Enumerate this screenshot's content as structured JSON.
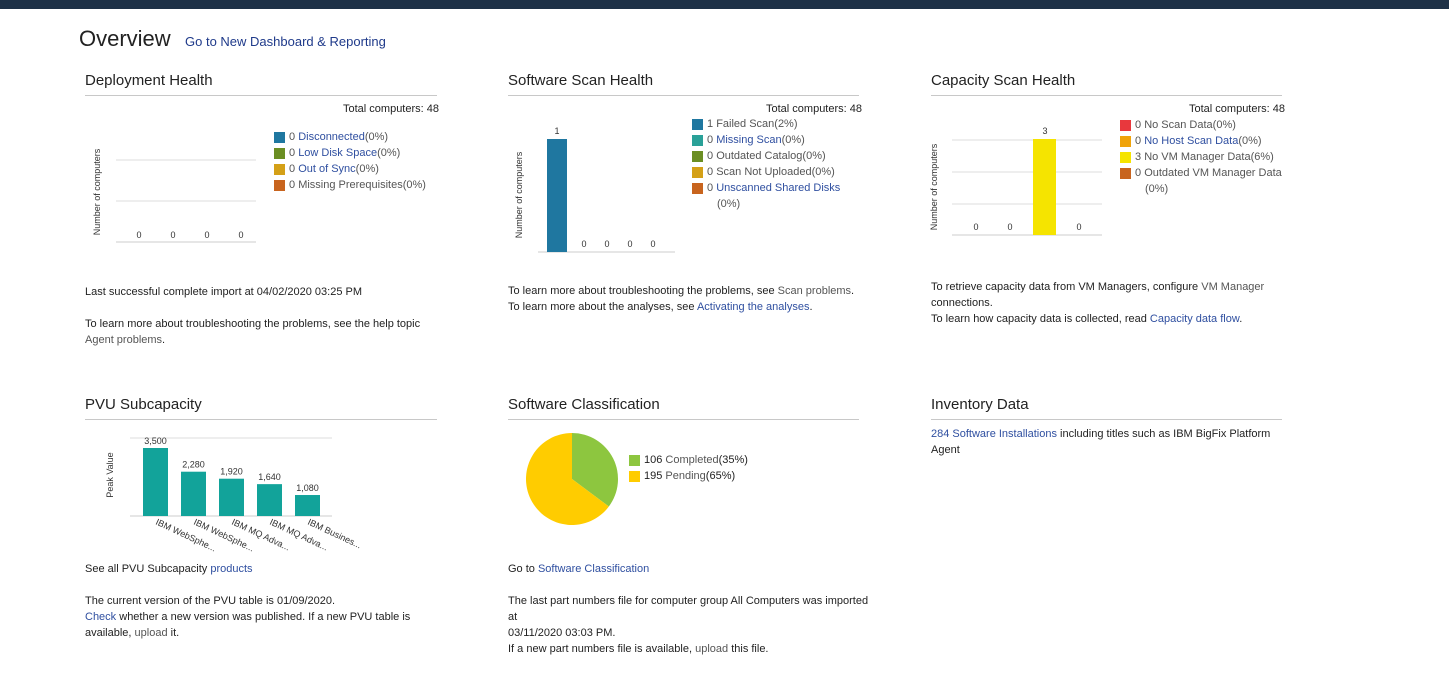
{
  "page": {
    "title": "Overview",
    "dashboard_link": "Go to New Dashboard & Reporting"
  },
  "deployment": {
    "title": "Deployment Health",
    "total": "Total computers: 48",
    "ylabel": "Number of computers",
    "legend": [
      {
        "count": "0",
        "label": "Disconnected",
        "pct": " (0%)",
        "color": "#1f77a0"
      },
      {
        "count": "0",
        "label": "Low Disk Space",
        "pct": " (0%)",
        "color": "#6b8e23"
      },
      {
        "count": "0",
        "label": "Out of Sync",
        "pct": " (0%)",
        "color": "#d4a017"
      },
      {
        "count": "0",
        "label": "Missing Prerequisites",
        "pct": " (0%)",
        "color": "#c8641e"
      }
    ],
    "bar_labels": [
      "0",
      "0",
      "0",
      "0"
    ],
    "import_text": "Last successful complete import at 04/02/2020 03:25 PM",
    "help_text": "To learn more about troubleshooting the problems, see the help topic",
    "help_link": "Agent problems",
    "help_end": "."
  },
  "softscan": {
    "title": "Software Scan Health",
    "total": "Total computers: 48",
    "ylabel": "Number of computers",
    "legend": [
      {
        "count": "1",
        "label": "Failed Scan",
        "pct": " (2%)",
        "color": "#1f77a0"
      },
      {
        "count": "0",
        "label": "Missing Scan",
        "pct": " (0%)",
        "color": "#2aa198"
      },
      {
        "count": "0",
        "label": "Outdated Catalog",
        "pct": " (0%)",
        "color": "#6b8e23"
      },
      {
        "count": "0",
        "label": "Scan Not Uploaded",
        "pct": " (0%)",
        "color": "#d4a017"
      },
      {
        "count": "0",
        "label": "Unscanned Shared Disks",
        "pct": "",
        "color": "#c8641e"
      }
    ],
    "last_pct": "(0%)",
    "bar_labels": [
      "1",
      "0",
      "0",
      "0",
      "0"
    ],
    "line1_pre": "To learn more about troubleshooting the problems, see ",
    "line1_link": "Scan problems",
    "line1_end": ".",
    "line2_pre": "To learn more about the analyses, see ",
    "line2_link": "Activating the analyses",
    "line2_end": "."
  },
  "capscan": {
    "title": "Capacity Scan Health",
    "total": "Total computers: 48",
    "ylabel": "Number of computers",
    "legend": [
      {
        "count": "0",
        "label": "No Scan Data",
        "pct": " (0%)",
        "color": "#e8383d"
      },
      {
        "count": "0",
        "label": "No Host Scan Data",
        "pct": " (0%)",
        "color": "#f0a30a"
      },
      {
        "count": "3",
        "label": "No VM Manager Data",
        "pct": " (6%)",
        "color": "#f5e400"
      },
      {
        "count": "0",
        "label": "Outdated VM Manager Data",
        "pct": "",
        "color": "#c8641e"
      }
    ],
    "last_pct": "(0%)",
    "bar_labels": [
      "0",
      "0",
      "3",
      "0"
    ],
    "line1_pre": "To retrieve capacity data from VM Managers, configure ",
    "line1_link": "VM Manager",
    "line1_end": "connections.",
    "line2_pre": "To learn how capacity data is collected, read ",
    "line2_link": "Capacity data flow",
    "line2_end": "."
  },
  "pvu": {
    "title": "PVU Subcapacity",
    "ylabel": "Peak Value",
    "bars": [
      {
        "value": "3,500",
        "label": "IBM WebSphe..."
      },
      {
        "value": "2,280",
        "label": "IBM WebSphe..."
      },
      {
        "value": "1,920",
        "label": "IBM MQ Adva..."
      },
      {
        "value": "1,640",
        "label": "IBM MQ Adva..."
      },
      {
        "value": "1,080",
        "label": "IBM Busines..."
      }
    ],
    "see_all_pre": "See all PVU Subcapacity ",
    "see_all_link": "products",
    "version_text": "The current version of the PVU table is 01/09/2020.",
    "check_link": "Check",
    "check_text": " whether a new version was published.  If a new PVU table is",
    "avail_text": "available, ",
    "upload_link": "upload",
    "upload_end": " it."
  },
  "classification": {
    "title": "Software Classification",
    "legend": [
      {
        "count": "106",
        "label": "Completed",
        "pct": " (35%)",
        "color": "#8dc63f"
      },
      {
        "count": "195",
        "label": "Pending",
        "pct": " (65%)",
        "color": "#ffcc00"
      }
    ],
    "goto_pre": "Go to ",
    "goto_link": "Software Classification",
    "parts_line1": "The last part numbers file for computer group All Computers was imported at",
    "parts_line2": "03/11/2020 03:03 PM.",
    "parts_line3_pre": "If a new part numbers file is available, ",
    "parts_line3_link": "upload",
    "parts_line3_end": " this file."
  },
  "inventory": {
    "title": "Inventory Data",
    "link": "284 Software Installations",
    "text1": " including titles such as IBM BigFix Platform",
    "text2": "Agent"
  }
}
